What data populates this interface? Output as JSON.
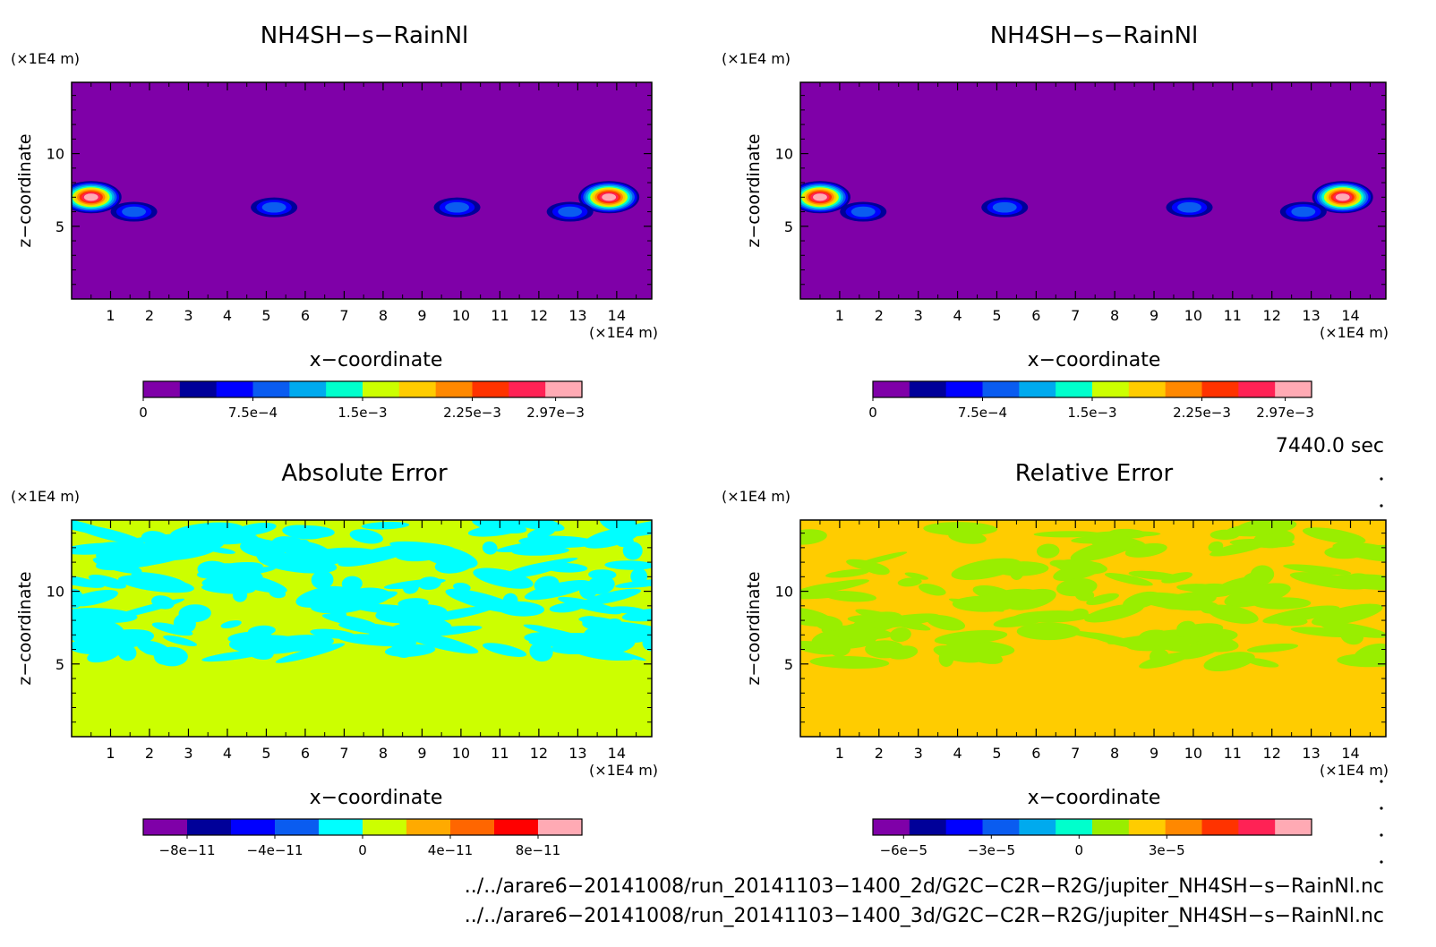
{
  "colorbar_palette": {
    "rain": [
      "#7f00a8",
      "#000099",
      "#0000ff",
      "#0a5cf0",
      "#00aaee",
      "#00ffcc",
      "#ccff00",
      "#ffcc00",
      "#ff8800",
      "#ff3300",
      "#ff2255",
      "#ffaab4"
    ],
    "abs_err": [
      "#7f00a8",
      "#000099",
      "#0000ff",
      "#0a5cf0",
      "#00ffff",
      "#ccff00",
      "#ffaa00",
      "#ff6600",
      "#ff0000",
      "#ffaab4"
    ],
    "rel_err": [
      "#7f00a8",
      "#000099",
      "#0000ff",
      "#0a5cf0",
      "#00aaee",
      "#00ffcc",
      "#99ee00",
      "#ffcc00",
      "#ff8800",
      "#ff3300",
      "#ff2255",
      "#ffaab4"
    ]
  },
  "chart_data": [
    {
      "type": "heatmap",
      "title": "NH4SH−s−RainNl",
      "xlabel": "x−coordinate",
      "ylabel": "z−coordinate",
      "x_unit": "(×1E4 m)",
      "z_unit": "(×1E4 m)",
      "xlim": [
        0,
        14.9
      ],
      "ylim": [
        0,
        14.9
      ],
      "x_ticks": [
        "1",
        "2",
        "3",
        "4",
        "5",
        "6",
        "7",
        "8",
        "9",
        "10",
        "11",
        "12",
        "13",
        "14"
      ],
      "z_ticks": [
        "5",
        "10"
      ],
      "background_color": "#7f00a8",
      "colorbar_labels": [
        "0",
        "7.5e−4",
        "1.5e−3",
        "2.25e−3",
        "2.97e−3"
      ],
      "colorbar_range": [
        0,
        0.00297
      ],
      "features": [
        {
          "x": 0.5,
          "z": 7.0,
          "level": 0.0029
        },
        {
          "x": 1.6,
          "z": 6.0,
          "level": 0.0009
        },
        {
          "x": 5.2,
          "z": 6.3,
          "level": 0.0008
        },
        {
          "x": 9.9,
          "z": 6.3,
          "level": 0.0008
        },
        {
          "x": 13.8,
          "z": 7.0,
          "level": 0.0029
        },
        {
          "x": 12.8,
          "z": 6.0,
          "level": 0.0009
        }
      ]
    },
    {
      "type": "heatmap",
      "title": "NH4SH−s−RainNl",
      "xlabel": "x−coordinate",
      "ylabel": "z−coordinate",
      "x_unit": "(×1E4 m)",
      "z_unit": "(×1E4 m)",
      "xlim": [
        0,
        14.9
      ],
      "ylim": [
        0,
        14.9
      ],
      "x_ticks": [
        "1",
        "2",
        "3",
        "4",
        "5",
        "6",
        "7",
        "8",
        "9",
        "10",
        "11",
        "12",
        "13",
        "14"
      ],
      "z_ticks": [
        "5",
        "10"
      ],
      "background_color": "#7f00a8",
      "colorbar_labels": [
        "0",
        "7.5e−4",
        "1.5e−3",
        "2.25e−3",
        "2.97e−3"
      ],
      "colorbar_range": [
        0,
        0.00297
      ],
      "features": [
        {
          "x": 0.5,
          "z": 7.0,
          "level": 0.0029
        },
        {
          "x": 1.6,
          "z": 6.0,
          "level": 0.0009
        },
        {
          "x": 5.2,
          "z": 6.3,
          "level": 0.0008
        },
        {
          "x": 9.9,
          "z": 6.3,
          "level": 0.0008
        },
        {
          "x": 13.8,
          "z": 7.0,
          "level": 0.0029
        },
        {
          "x": 12.8,
          "z": 6.0,
          "level": 0.0009
        }
      ]
    },
    {
      "type": "heatmap",
      "title": "Absolute Error",
      "xlabel": "x−coordinate",
      "ylabel": "z−coordinate",
      "x_unit": "(×1E4 m)",
      "z_unit": "(×1E4 m)",
      "xlim": [
        0,
        14.9
      ],
      "ylim": [
        0,
        14.9
      ],
      "x_ticks": [
        "1",
        "2",
        "3",
        "4",
        "5",
        "6",
        "7",
        "8",
        "9",
        "10",
        "11",
        "12",
        "13",
        "14"
      ],
      "z_ticks": [
        "5",
        "10"
      ],
      "background_color": "#ccff00",
      "pattern_color": "#00ffff",
      "pattern_z_range": [
        5.5,
        14.9
      ],
      "colorbar_labels": [
        "−8e−11",
        "−4e−11",
        "0",
        "4e−11",
        "8e−11"
      ]
    },
    {
      "type": "heatmap",
      "title": "Relative Error",
      "xlabel": "x−coordinate",
      "ylabel": "z−coordinate",
      "x_unit": "(×1E4 m)",
      "z_unit": "(×1E4 m)",
      "xlim": [
        0,
        14.9
      ],
      "ylim": [
        0,
        14.9
      ],
      "x_ticks": [
        "1",
        "2",
        "3",
        "4",
        "5",
        "6",
        "7",
        "8",
        "9",
        "10",
        "11",
        "12",
        "13",
        "14"
      ],
      "z_ticks": [
        "5",
        "10"
      ],
      "background_color": "#ffcc00",
      "pattern_color": "#99ee00",
      "pattern_z_range": [
        5.0,
        14.5
      ],
      "colorbar_labels": [
        "−6e−5",
        "−3e−5",
        "0",
        "3e−5"
      ]
    }
  ],
  "time_label": "7440.0 sec",
  "file_paths": [
    "../../arare6−20141008/run_20141103−1400_2d/G2C−C2R−R2G/jupiter_NH4SH−s−RainNl.nc",
    "../../arare6−20141008/run_20141103−1400_3d/G2C−C2R−R2G/jupiter_NH4SH−s−RainNl.nc"
  ]
}
